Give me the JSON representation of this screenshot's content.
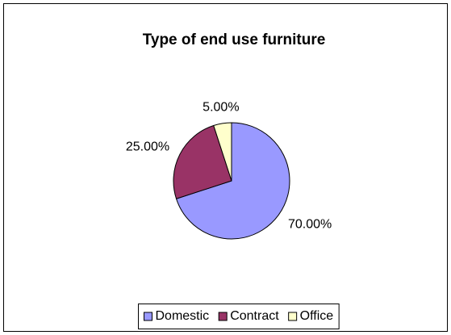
{
  "chart_data": {
    "type": "pie",
    "title": "Type of end use furniture",
    "categories": [
      "Domestic",
      "Contract",
      "Office"
    ],
    "values": [
      70,
      25,
      5
    ],
    "value_labels": [
      "70.00%",
      "25.00%",
      "5.00%"
    ],
    "colors": [
      "#9999ff",
      "#993366",
      "#ffffcc"
    ],
    "legend": "bottom"
  }
}
